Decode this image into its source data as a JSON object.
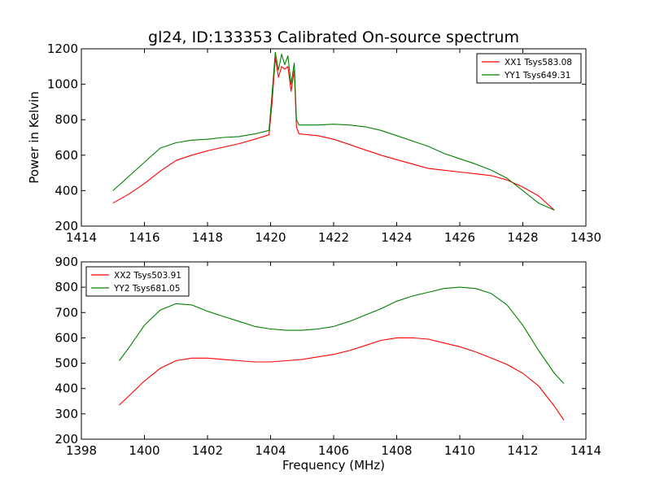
{
  "colors": {
    "xx": "#ff0000",
    "yy": "#008000"
  },
  "chart_data": [
    {
      "type": "line",
      "title": "gl24, ID:133353 Calibrated On-source spectrum",
      "xlabel": "",
      "ylabel": "Power in Kelvin",
      "xlim": [
        1414,
        1430
      ],
      "ylim": [
        200,
        1200
      ],
      "xticks": [
        1414,
        1416,
        1418,
        1420,
        1422,
        1424,
        1426,
        1428,
        1430
      ],
      "yticks": [
        200,
        400,
        600,
        800,
        1000,
        1200
      ],
      "legend": "top-right",
      "grid": false,
      "series": [
        {
          "name": "XX1 Tsys583.08",
          "color": "#ff0000",
          "points": [
            [
              1415,
              330
            ],
            [
              1415.5,
              380
            ],
            [
              1416,
              440
            ],
            [
              1416.5,
              510
            ],
            [
              1417,
              570
            ],
            [
              1417.5,
              600
            ],
            [
              1418,
              625
            ],
            [
              1418.5,
              645
            ],
            [
              1419,
              665
            ],
            [
              1419.5,
              690
            ],
            [
              1419.95,
              715
            ],
            [
              1420.05,
              900
            ],
            [
              1420.15,
              1150
            ],
            [
              1420.25,
              1040
            ],
            [
              1420.35,
              1100
            ],
            [
              1420.45,
              1085
            ],
            [
              1420.55,
              1100
            ],
            [
              1420.65,
              960
            ],
            [
              1420.75,
              1080
            ],
            [
              1420.82,
              760
            ],
            [
              1420.9,
              720
            ],
            [
              1421.5,
              710
            ],
            [
              1422,
              690
            ],
            [
              1422.5,
              660
            ],
            [
              1423,
              630
            ],
            [
              1423.5,
              600
            ],
            [
              1424,
              575
            ],
            [
              1424.5,
              550
            ],
            [
              1425,
              525
            ],
            [
              1425.5,
              515
            ],
            [
              1426,
              505
            ],
            [
              1426.5,
              495
            ],
            [
              1427,
              485
            ],
            [
              1427.5,
              460
            ],
            [
              1428,
              420
            ],
            [
              1428.5,
              370
            ],
            [
              1429,
              290
            ]
          ]
        },
        {
          "name": "YY1 Tsys649.31",
          "color": "#008000",
          "points": [
            [
              1415,
              400
            ],
            [
              1415.5,
              480
            ],
            [
              1416,
              560
            ],
            [
              1416.5,
              640
            ],
            [
              1417,
              670
            ],
            [
              1417.5,
              685
            ],
            [
              1418,
              690
            ],
            [
              1418.5,
              700
            ],
            [
              1419,
              705
            ],
            [
              1419.5,
              720
            ],
            [
              1419.95,
              740
            ],
            [
              1420.05,
              950
            ],
            [
              1420.15,
              1180
            ],
            [
              1420.25,
              1080
            ],
            [
              1420.35,
              1170
            ],
            [
              1420.45,
              1110
            ],
            [
              1420.55,
              1160
            ],
            [
              1420.65,
              1000
            ],
            [
              1420.75,
              1120
            ],
            [
              1420.82,
              800
            ],
            [
              1420.9,
              770
            ],
            [
              1421.5,
              770
            ],
            [
              1422,
              775
            ],
            [
              1422.5,
              770
            ],
            [
              1423,
              760
            ],
            [
              1423.5,
              740
            ],
            [
              1424,
              710
            ],
            [
              1424.5,
              680
            ],
            [
              1425,
              650
            ],
            [
              1425.5,
              610
            ],
            [
              1426,
              580
            ],
            [
              1426.5,
              550
            ],
            [
              1427,
              515
            ],
            [
              1427.5,
              470
            ],
            [
              1428,
              400
            ],
            [
              1428.5,
              330
            ],
            [
              1429,
              290
            ]
          ]
        }
      ]
    },
    {
      "type": "line",
      "title": "",
      "xlabel": "Frequency (MHz)",
      "ylabel": "",
      "xlim": [
        1398,
        1414
      ],
      "ylim": [
        200,
        900
      ],
      "xticks": [
        1398,
        1400,
        1402,
        1404,
        1406,
        1408,
        1410,
        1412,
        1414
      ],
      "yticks": [
        200,
        300,
        400,
        500,
        600,
        700,
        800,
        900
      ],
      "legend": "top-left",
      "grid": false,
      "series": [
        {
          "name": "XX2 Tsys503.91",
          "color": "#ff0000",
          "points": [
            [
              1399.2,
              335
            ],
            [
              1399.5,
              370
            ],
            [
              1400,
              430
            ],
            [
              1400.5,
              480
            ],
            [
              1401,
              510
            ],
            [
              1401.5,
              520
            ],
            [
              1402,
              520
            ],
            [
              1402.5,
              515
            ],
            [
              1403,
              510
            ],
            [
              1403.5,
              505
            ],
            [
              1404,
              505
            ],
            [
              1404.5,
              510
            ],
            [
              1405,
              515
            ],
            [
              1405.5,
              525
            ],
            [
              1406,
              535
            ],
            [
              1406.5,
              550
            ],
            [
              1407,
              570
            ],
            [
              1407.5,
              590
            ],
            [
              1408,
              600
            ],
            [
              1408.5,
              600
            ],
            [
              1409,
              595
            ],
            [
              1409.5,
              580
            ],
            [
              1410,
              565
            ],
            [
              1410.5,
              545
            ],
            [
              1411,
              520
            ],
            [
              1411.5,
              495
            ],
            [
              1412,
              460
            ],
            [
              1412.5,
              410
            ],
            [
              1413,
              330
            ],
            [
              1413.3,
              275
            ]
          ]
        },
        {
          "name": "YY2 Tsys681.05",
          "color": "#008000",
          "points": [
            [
              1399.2,
              510
            ],
            [
              1399.5,
              560
            ],
            [
              1400,
              650
            ],
            [
              1400.5,
              710
            ],
            [
              1401,
              735
            ],
            [
              1401.5,
              730
            ],
            [
              1402,
              705
            ],
            [
              1402.5,
              685
            ],
            [
              1403,
              665
            ],
            [
              1403.5,
              645
            ],
            [
              1404,
              635
            ],
            [
              1404.5,
              630
            ],
            [
              1405,
              630
            ],
            [
              1405.5,
              635
            ],
            [
              1406,
              645
            ],
            [
              1406.5,
              665
            ],
            [
              1407,
              690
            ],
            [
              1407.5,
              715
            ],
            [
              1408,
              745
            ],
            [
              1408.5,
              765
            ],
            [
              1409,
              780
            ],
            [
              1409.5,
              795
            ],
            [
              1410,
              800
            ],
            [
              1410.5,
              795
            ],
            [
              1411,
              775
            ],
            [
              1411.5,
              730
            ],
            [
              1412,
              650
            ],
            [
              1412.5,
              550
            ],
            [
              1413,
              460
            ],
            [
              1413.3,
              420
            ]
          ]
        }
      ]
    }
  ]
}
